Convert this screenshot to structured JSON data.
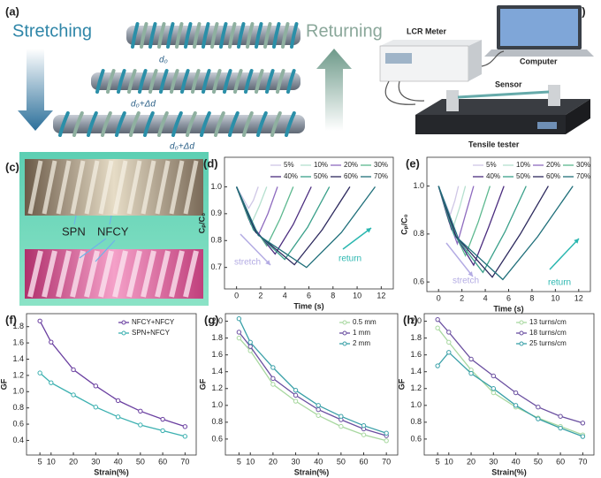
{
  "figure": {
    "a": {
      "panel": "(a)",
      "stretching": "Stretching",
      "returning": "Returning",
      "gap": "d₀",
      "gap_stretched_1": "d₀+Δd",
      "gap_stretched_2": "d₀+Δd"
    },
    "b": {
      "panel": "(b)",
      "meter": "LCR Meter",
      "computer": "Computer",
      "sensor": "Sensor",
      "tester": "Tensile tester"
    },
    "c": {
      "panel": "(c)",
      "spn": "SPN",
      "nfcy": "NFCY"
    }
  },
  "chart_data": [
    {
      "type": "line",
      "panel": "(d)",
      "xlabel": "Time (s)",
      "ylabel": "Cₚ/C₀",
      "legend": "top-grid",
      "xlim": [
        -1,
        13
      ],
      "xticks": [
        0,
        2,
        4,
        6,
        8,
        10,
        12
      ],
      "ylim": [
        0.62,
        1.11
      ],
      "yticks": [
        0.7,
        0.8,
        0.9,
        {
          "value": 1,
          "label": "1.0"
        }
      ],
      "annotations": [
        {
          "text": "stretch",
          "color": "#b3abe3"
        },
        {
          "text": "return",
          "color": "#2bb7b0"
        }
      ],
      "series": [
        {
          "name": "5%",
          "color": "#cfc7e6",
          "x": [
            0,
            0.5,
            1,
            1.4,
            1.8
          ],
          "values": [
            1,
            0.96,
            0.92,
            0.95,
            1
          ]
        },
        {
          "name": "10%",
          "color": "#b5e0cf",
          "x": [
            0,
            0.6,
            1.3,
            1.9,
            2.5
          ],
          "values": [
            1,
            0.94,
            0.87,
            0.93,
            1
          ]
        },
        {
          "name": "20%",
          "color": "#8e6bbf",
          "x": [
            0,
            0.8,
            1.8,
            2.6,
            3.4
          ],
          "values": [
            1,
            0.91,
            0.82,
            0.9,
            1
          ]
        },
        {
          "name": "30%",
          "color": "#5cb88f",
          "x": [
            0,
            1,
            2.5,
            3.6,
            4.7
          ],
          "values": [
            1,
            0.88,
            0.78,
            0.88,
            1
          ]
        },
        {
          "name": "40%",
          "color": "#4b2d7f",
          "x": [
            0,
            1.2,
            3.2,
            4.7,
            6.2
          ],
          "values": [
            1,
            0.86,
            0.75,
            0.86,
            1
          ]
        },
        {
          "name": "50%",
          "color": "#3aa08a",
          "x": [
            0,
            1.4,
            4,
            5.9,
            7.7
          ],
          "values": [
            1,
            0.84,
            0.73,
            0.85,
            1
          ]
        },
        {
          "name": "60%",
          "color": "#2d2a5e",
          "x": [
            0,
            1.6,
            4.8,
            7.1,
            9.4
          ],
          "values": [
            1,
            0.83,
            0.71,
            0.84,
            1
          ]
        },
        {
          "name": "70%",
          "color": "#1f6f7a",
          "x": [
            0,
            1.8,
            5.8,
            8.7,
            11.5
          ],
          "values": [
            1,
            0.82,
            0.7,
            0.83,
            1
          ]
        }
      ]
    },
    {
      "type": "line",
      "panel": "(e)",
      "xlabel": "Time (s)",
      "ylabel": "Cₚ/C₀",
      "legend": "top-grid",
      "xlim": [
        -1,
        13
      ],
      "xticks": [
        0,
        2,
        4,
        6,
        8,
        10,
        12
      ],
      "ylim": [
        0.56,
        1.12
      ],
      "yticks": [
        0.6,
        0.8,
        {
          "value": 1,
          "label": "1.0"
        }
      ],
      "annotations": [
        {
          "text": "stretch",
          "color": "#b3abe3"
        },
        {
          "text": "return",
          "color": "#2bb7b0"
        }
      ],
      "series": [
        {
          "name": "5%",
          "color": "#cfc7e6",
          "x": [
            0,
            0.5,
            1,
            1.4,
            1.7
          ],
          "values": [
            1,
            0.94,
            0.88,
            0.94,
            1
          ]
        },
        {
          "name": "10%",
          "color": "#b5e0cf",
          "x": [
            0,
            0.6,
            1.2,
            1.8,
            2.3
          ],
          "values": [
            1,
            0.91,
            0.82,
            0.91,
            1
          ]
        },
        {
          "name": "20%",
          "color": "#8e6bbf",
          "x": [
            0,
            0.7,
            1.6,
            2.3,
            3
          ],
          "values": [
            1,
            0.88,
            0.76,
            0.88,
            1
          ]
        },
        {
          "name": "30%",
          "color": "#5cb88f",
          "x": [
            0,
            0.9,
            2.3,
            3.4,
            4.4
          ],
          "values": [
            1,
            0.85,
            0.71,
            0.85,
            1
          ]
        },
        {
          "name": "40%",
          "color": "#4b2d7f",
          "x": [
            0,
            1.1,
            3,
            4.3,
            5.6
          ],
          "values": [
            1,
            0.82,
            0.67,
            0.83,
            1
          ]
        },
        {
          "name": "50%",
          "color": "#3aa08a",
          "x": [
            0,
            1.3,
            3.8,
            5.7,
            7.5
          ],
          "values": [
            1,
            0.8,
            0.64,
            0.81,
            1
          ]
        },
        {
          "name": "60%",
          "color": "#2d2a5e",
          "x": [
            0,
            1.5,
            4.6,
            7,
            9.4
          ],
          "values": [
            1,
            0.79,
            0.62,
            0.8,
            1
          ]
        },
        {
          "name": "70%",
          "color": "#1f6f7a",
          "x": [
            0,
            1.7,
            5.5,
            8.5,
            11.5
          ],
          "values": [
            1,
            0.78,
            0.61,
            0.79,
            1
          ]
        }
      ]
    },
    {
      "type": "line",
      "panel": "(f)",
      "xlabel": "Strain(%)",
      "ylabel": "GF",
      "legend": "upper right",
      "markers": true,
      "x": [
        5,
        10,
        20,
        30,
        40,
        50,
        60,
        70
      ],
      "xlim": [
        -1,
        75
      ],
      "xticks": [
        5,
        10,
        20,
        30,
        40,
        50,
        60,
        70
      ],
      "ylim": [
        0.22,
        1.96
      ],
      "yticks": [
        0.4,
        0.6,
        0.8,
        {
          "value": 1,
          "label": "1.0"
        },
        1.2,
        1.4,
        1.6,
        1.8
      ],
      "series": [
        {
          "name": "NFCY+NFCY",
          "color": "#6a3fa0",
          "values": [
            1.87,
            1.61,
            1.27,
            1.07,
            0.89,
            0.76,
            0.66,
            0.57
          ]
        },
        {
          "name": "SPN+NFCY",
          "color": "#3bb0b0",
          "values": [
            1.23,
            1.11,
            0.96,
            0.81,
            0.69,
            0.59,
            0.52,
            0.45
          ]
        }
      ]
    },
    {
      "type": "line",
      "panel": "(g)",
      "xlabel": "Strain(%)",
      "ylabel": "GF",
      "legend": "upper right",
      "markers": true,
      "x": [
        5,
        10,
        20,
        30,
        40,
        50,
        60,
        70
      ],
      "xlim": [
        -1,
        75
      ],
      "xticks": [
        5,
        10,
        20,
        30,
        40,
        50,
        60,
        70
      ],
      "ylim": [
        0.41,
        2.09
      ],
      "yticks": [
        0.6,
        0.8,
        {
          "value": 1,
          "label": "1.0"
        },
        1.2,
        1.4,
        1.6,
        1.8,
        {
          "value": 2,
          "label": "2.0"
        }
      ],
      "series": [
        {
          "name": "0.5 mm",
          "color": "#a8d8a0",
          "values": [
            1.8,
            1.65,
            1.25,
            1.05,
            0.88,
            0.75,
            0.65,
            0.58
          ]
        },
        {
          "name": "1 mm",
          "color": "#6a4fa0",
          "values": [
            1.87,
            1.7,
            1.32,
            1.12,
            0.95,
            0.83,
            0.72,
            0.64
          ]
        },
        {
          "name": "2 mm",
          "color": "#3aa0a8",
          "values": [
            2.03,
            1.75,
            1.45,
            1.18,
            1,
            0.87,
            0.76,
            0.67
          ]
        }
      ]
    },
    {
      "type": "line",
      "panel": "(h)",
      "xlabel": "Strain(%)",
      "ylabel": "GF",
      "legend": "upper right",
      "markers": true,
      "x": [
        5,
        10,
        20,
        30,
        40,
        50,
        60,
        70
      ],
      "xlim": [
        -1,
        75
      ],
      "xticks": [
        5,
        10,
        20,
        30,
        40,
        50,
        60,
        70
      ],
      "ylim": [
        0.41,
        2.09
      ],
      "yticks": [
        0.6,
        0.8,
        {
          "value": 1,
          "label": "1.0"
        },
        1.2,
        1.4,
        1.6,
        1.8,
        {
          "value": 2,
          "label": "2.0"
        }
      ],
      "series": [
        {
          "name": "13 turns/cm",
          "color": "#a8d8a0",
          "values": [
            1.92,
            1.75,
            1.42,
            1.15,
            0.98,
            0.85,
            0.75,
            0.65
          ]
        },
        {
          "name": "18 turns/cm",
          "color": "#6a4fa0",
          "values": [
            2.02,
            1.87,
            1.55,
            1.35,
            1.15,
            0.98,
            0.87,
            0.79
          ]
        },
        {
          "name": "25 turns/cm",
          "color": "#3aa0a8",
          "values": [
            1.47,
            1.63,
            1.38,
            1.2,
            1,
            0.84,
            0.73,
            0.63
          ]
        }
      ]
    }
  ]
}
